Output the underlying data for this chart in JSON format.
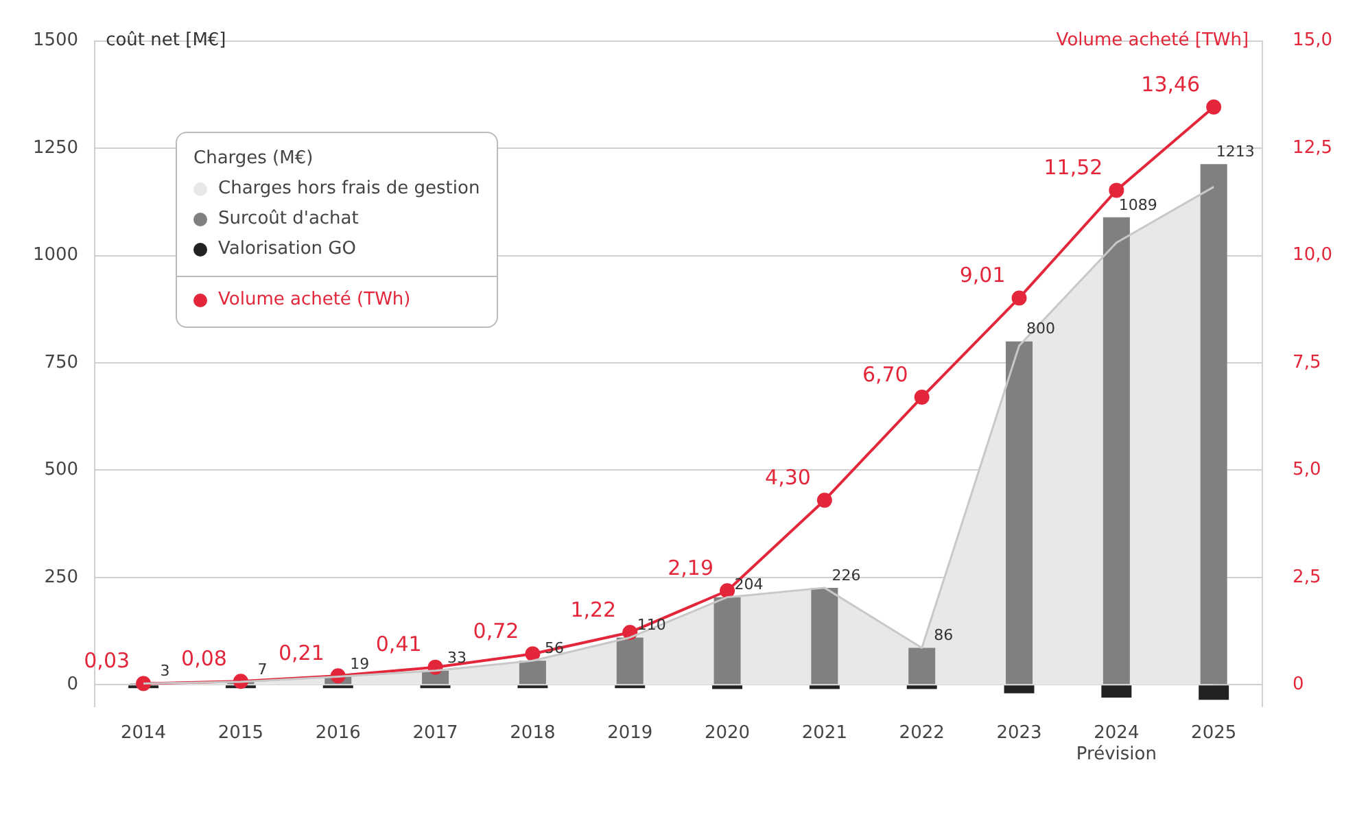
{
  "chart_data": {
    "type": "bar",
    "ylabel": "coût net [M€]",
    "y2label": "Volume acheté [TWh]",
    "legend_title": "Charges (M€)",
    "legend": "top left",
    "grid": "y",
    "categories": [
      "2014",
      "2015",
      "2016",
      "2017",
      "2018",
      "2019",
      "2020",
      "2021",
      "2022",
      "2023",
      "2024\nPrévision",
      "2025"
    ],
    "series": [
      {
        "name": "Charges hors frais de gestion",
        "type": "area",
        "color": "#e8e8e8",
        "values": [
          3,
          7,
          19,
          33,
          56,
          110,
          204,
          226,
          86,
          790,
          1030,
          1160
        ]
      },
      {
        "name": "Surcoût d'achat",
        "color": "#808080",
        "values": [
          3,
          7,
          19,
          33,
          56,
          110,
          204,
          226,
          86,
          800,
          1089,
          1213
        ],
        "value_labels": [
          "3",
          "7",
          "19",
          "33",
          "56",
          "110",
          "204",
          "226",
          "86",
          "800",
          "1089",
          "1213"
        ]
      },
      {
        "name": "Valorisation GO",
        "color": "#222222",
        "values": [
          -8,
          -8,
          -8,
          -8,
          -8,
          -8,
          -10,
          -10,
          -10,
          -20,
          -30,
          -35
        ]
      },
      {
        "name": "Volume acheté (TWh)",
        "type": "line",
        "axis": "y2",
        "color": "#e3263a",
        "marker": "circle",
        "values": [
          0.03,
          0.08,
          0.21,
          0.41,
          0.72,
          1.22,
          2.19,
          4.3,
          6.7,
          9.01,
          11.52,
          13.46
        ],
        "value_labels": [
          "0,03",
          "0,08",
          "0,21",
          "0,41",
          "0,72",
          "1,22",
          "2,19",
          "4,30",
          "6,70",
          "9,01",
          "11,52",
          "13,46"
        ]
      }
    ],
    "ylim": [
      -50,
      1500
    ],
    "yticks": [
      0,
      250,
      500,
      750,
      1000,
      1250,
      1500
    ],
    "y2lim": [
      -0.5,
      15
    ],
    "y2ticks": [
      {
        "value": 0,
        "label": "0"
      },
      {
        "value": 2.5,
        "label": "2,5"
      },
      {
        "value": 5,
        "label": "5,0"
      },
      {
        "value": 7.5,
        "label": "7,5"
      },
      {
        "value": 10,
        "label": "10,0"
      },
      {
        "value": 12.5,
        "label": "12,5"
      },
      {
        "value": 15,
        "label": "15,0"
      }
    ]
  }
}
